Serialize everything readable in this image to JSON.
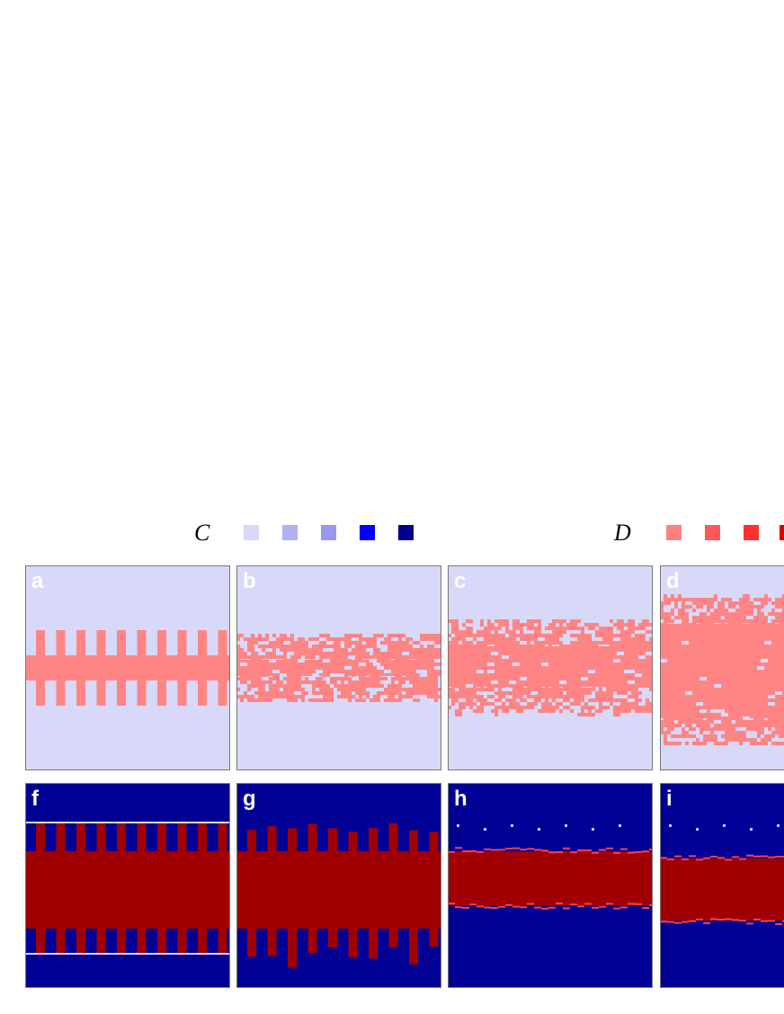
{
  "legend": [
    "C",
    "D"
  ],
  "panels": [
    "a",
    "b",
    "c",
    "d",
    "f",
    "g",
    "h",
    "i"
  ]
}
